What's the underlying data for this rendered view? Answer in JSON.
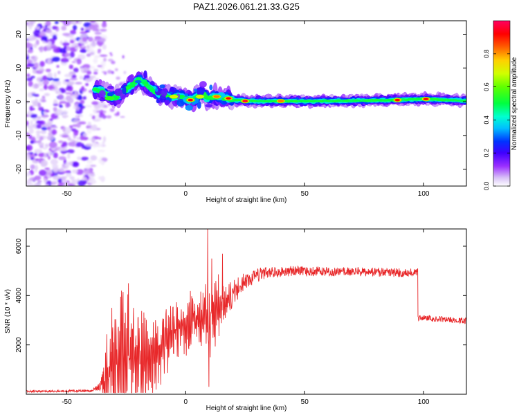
{
  "title": "PAZ1.2026.061.21.33.G25",
  "chart_data": [
    {
      "type": "heatmap",
      "name": "spectrogram",
      "xlabel": "Height of straight line (km)",
      "ylabel": "Frequency (Hz)",
      "xlim": [
        -67,
        118
      ],
      "ylim": [
        -25,
        24
      ],
      "xticks": [
        -50,
        0,
        50,
        100
      ],
      "yticks": [
        -20,
        -10,
        0,
        10,
        20
      ],
      "colorbar": {
        "label": "Normalized spectral amplitude",
        "range": [
          0,
          1
        ],
        "ticks": [
          0.0,
          0.2,
          0.4,
          0.6,
          0.8
        ]
      },
      "noise_region_x": [
        -67,
        -37
      ],
      "ridge": [
        {
          "x": -37,
          "f": 3.5
        },
        {
          "x": -33,
          "f": 2.5
        },
        {
          "x": -30,
          "f": 1.0
        },
        {
          "x": -25,
          "f": 3.5
        },
        {
          "x": -20,
          "f": 6.5
        },
        {
          "x": -17,
          "f": 5.5
        },
        {
          "x": -15,
          "f": 4.0
        },
        {
          "x": -12,
          "f": 2.5
        },
        {
          "x": -8,
          "f": 1.5
        },
        {
          "x": -3,
          "f": 1.5
        },
        {
          "x": 0,
          "f": 1.0
        },
        {
          "x": 3,
          "f": 0.5
        },
        {
          "x": 7,
          "f": 2.5
        },
        {
          "x": 9,
          "f": 1.0
        },
        {
          "x": 12,
          "f": 1.5
        },
        {
          "x": 15,
          "f": 1.2
        },
        {
          "x": 20,
          "f": 0.5
        },
        {
          "x": 30,
          "f": 0.2
        },
        {
          "x": 60,
          "f": 0.2
        },
        {
          "x": 90,
          "f": 0.5
        },
        {
          "x": 100,
          "f": 0.8
        },
        {
          "x": 118,
          "f": 0.3
        }
      ],
      "peaks": [
        {
          "x": -32,
          "f": 1.0,
          "amp": 0.55
        },
        {
          "x": -26,
          "f": 3.5,
          "amp": 0.5
        },
        {
          "x": -19,
          "f": 5.0,
          "amp": 0.45
        },
        {
          "x": -16,
          "f": 4.0,
          "amp": 0.4
        },
        {
          "x": -5,
          "f": 1.5,
          "amp": 0.7
        },
        {
          "x": 2,
          "f": 0.5,
          "amp": 0.9
        },
        {
          "x": 6,
          "f": 1.5,
          "amp": 0.75
        },
        {
          "x": 13,
          "f": 1.5,
          "amp": 0.8
        },
        {
          "x": 18,
          "f": 1.0,
          "amp": 0.95
        },
        {
          "x": 25,
          "f": 0.2,
          "amp": 1.0
        },
        {
          "x": 40,
          "f": 0.2,
          "amp": 0.85
        },
        {
          "x": 89,
          "f": 0.5,
          "amp": 0.9
        },
        {
          "x": 101,
          "f": 0.8,
          "amp": 0.95
        }
      ]
    },
    {
      "type": "line",
      "name": "snr",
      "xlabel": "Height of straight line (km)",
      "ylabel": "SNR (10 * v/v)",
      "xlim": [
        -67,
        118
      ],
      "ylim": [
        0,
        6700
      ],
      "xticks": [
        -50,
        0,
        50,
        100
      ],
      "yticks": [
        2000,
        4000,
        6000
      ],
      "color": "#e8282a",
      "envelope": [
        {
          "x": -67,
          "base": 120,
          "amp": 40
        },
        {
          "x": -40,
          "base": 140,
          "amp": 50
        },
        {
          "x": -36,
          "base": 300,
          "amp": 150
        },
        {
          "x": -32,
          "base": 900,
          "amp": 1600
        },
        {
          "x": -28,
          "base": 1300,
          "amp": 2000
        },
        {
          "x": -24,
          "base": 1500,
          "amp": 2300
        },
        {
          "x": -20,
          "base": 1500,
          "amp": 1800
        },
        {
          "x": -16,
          "base": 1400,
          "amp": 1500
        },
        {
          "x": -12,
          "base": 1600,
          "amp": 1200
        },
        {
          "x": -8,
          "base": 2300,
          "amp": 1000
        },
        {
          "x": -4,
          "base": 2600,
          "amp": 900
        },
        {
          "x": 0,
          "base": 2800,
          "amp": 900
        },
        {
          "x": 4,
          "base": 3000,
          "amp": 900
        },
        {
          "x": 7,
          "base": 3100,
          "amp": 1000
        },
        {
          "x": 12,
          "base": 3300,
          "amp": 1200
        },
        {
          "x": 16,
          "base": 3700,
          "amp": 800
        },
        {
          "x": 20,
          "base": 4100,
          "amp": 500
        },
        {
          "x": 25,
          "base": 4600,
          "amp": 350
        },
        {
          "x": 32,
          "base": 4900,
          "amp": 250
        },
        {
          "x": 45,
          "base": 5000,
          "amp": 200
        },
        {
          "x": 80,
          "base": 4950,
          "amp": 180
        },
        {
          "x": 97.5,
          "base": 4920,
          "amp": 180
        },
        {
          "x": 97.6,
          "base": 3100,
          "amp": 120
        },
        {
          "x": 118,
          "base": 2980,
          "amp": 120
        }
      ],
      "spikes": [
        {
          "x": 9.3,
          "y": 6700
        },
        {
          "x": 9.8,
          "y": 300
        },
        {
          "x": 10.3,
          "y": 1500
        },
        {
          "x": 11.0,
          "y": 5500
        },
        {
          "x": 15.5,
          "y": 5700
        },
        {
          "x": -24,
          "y": 4500
        },
        {
          "x": -27,
          "y": 4200
        },
        {
          "x": -31,
          "y": 3500
        },
        {
          "x": 97.5,
          "y": 5100
        }
      ]
    }
  ]
}
